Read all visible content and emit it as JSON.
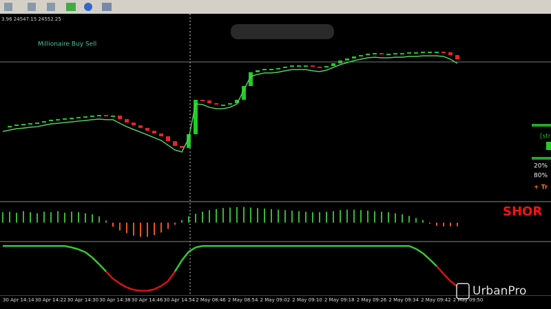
{
  "chart_data": {
    "type": "candlestick",
    "title": "Millionaire Buy Sell",
    "info": "3.96 24547.15 24552.25",
    "categories": [
      "30 Apr 14:14",
      "30 Apr 14:22",
      "30 Apr 14:30",
      "30 Apr 14:38",
      "30 Apr 14:46",
      "30 Apr 14:54",
      "2 May 08:46",
      "2 May 08:54",
      "2 May 09:02",
      "2 May 09:10",
      "2 May 09:18",
      "2 May 09:26",
      "2 May 09:34",
      "2 May 09:42",
      "2 May 09:50"
    ],
    "close": [
      36.2,
      36.9,
      37.6,
      37.9,
      38.3,
      38.6,
      39.3,
      40.0,
      40.3,
      40.7,
      41.0,
      41.4,
      41.7,
      42.1,
      42.4,
      42.1,
      42.1,
      40.3,
      38.6,
      37.2,
      35.9,
      34.5,
      33.1,
      31.7,
      29.3,
      26.9,
      25.9,
      32.8,
      50.0,
      49.7,
      48.3,
      47.6,
      47.6,
      48.3,
      50.0,
      56.9,
      63.8,
      64.8,
      65.5,
      65.5,
      65.9,
      66.6,
      67.2,
      67.2,
      67.2,
      66.6,
      66.2,
      66.9,
      68.3,
      69.7,
      70.7,
      71.7,
      72.4,
      73.1,
      73.4,
      73.1,
      73.1,
      73.4,
      73.4,
      73.8,
      73.8,
      74.1,
      74.1,
      74.1,
      73.8,
      72.4,
      70.3
    ],
    "ylim": [
      0,
      100
    ],
    "up_color": "#22cc22",
    "down_color": "#ee2222",
    "line_color": "#55cc66",
    "histogram": {
      "values": [
        20,
        21,
        19,
        22,
        20,
        18,
        21,
        20,
        22,
        19,
        21,
        20,
        18,
        16,
        12,
        4,
        -8,
        -15,
        -20,
        -25,
        -27,
        -27,
        -24,
        -19,
        -12,
        -4,
        5,
        12,
        17,
        21,
        24,
        26,
        28,
        29,
        30,
        30,
        29,
        28,
        27,
        26,
        25,
        24,
        23,
        22,
        21,
        20,
        20,
        21,
        22,
        24,
        25,
        25,
        24,
        23,
        22,
        21,
        20,
        18,
        16,
        13,
        9,
        5,
        -2,
        -6,
        -7,
        -7,
        -7
      ],
      "ylim": [
        -35,
        35
      ],
      "pos_color": "#33bb33",
      "neg_color": "#ee5522"
    },
    "oscillator": {
      "values": [
        98,
        98,
        98,
        98,
        98,
        98,
        98,
        98,
        98,
        98,
        95,
        91,
        85,
        74,
        60,
        45,
        30,
        20,
        12,
        7,
        5,
        5,
        8,
        15,
        25,
        45,
        68,
        86,
        95,
        98,
        98,
        98,
        98,
        98,
        98,
        98,
        98,
        98,
        98,
        98,
        98,
        98,
        98,
        98,
        98,
        98,
        98,
        98,
        98,
        98,
        98,
        98,
        98,
        98,
        98,
        98,
        98,
        98,
        98,
        98,
        92,
        83,
        70,
        56,
        40,
        25,
        14
      ],
      "ylim": [
        0,
        100
      ],
      "high_color": "#33cc33",
      "low_color": "#dd1111"
    },
    "panel": {
      "strength": "[str",
      "level_high": "20%",
      "level_low": "80%",
      "signal": "SHOR",
      "trend": "+  Tr"
    }
  },
  "watermark": "UrbanPro"
}
